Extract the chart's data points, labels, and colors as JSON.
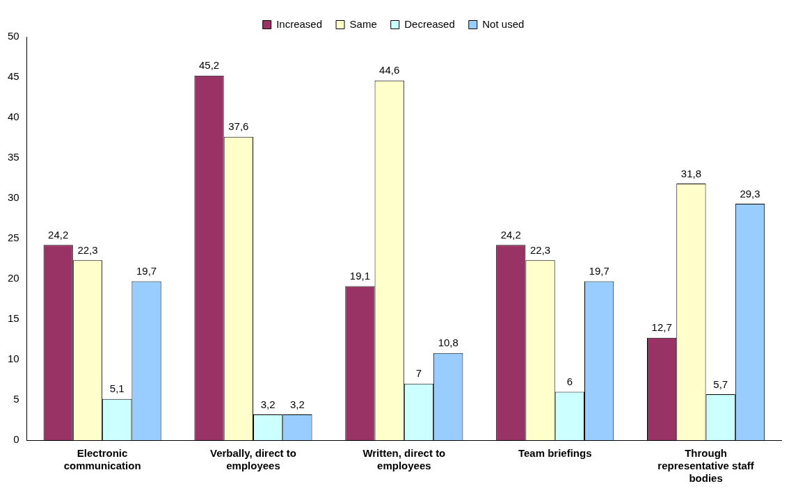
{
  "chart_data": {
    "type": "bar",
    "categories": [
      "Electronic communication",
      "Verbally, direct to employees",
      "Written, direct to employees",
      "Team briefings",
      "Through representative staff bodies"
    ],
    "series": [
      {
        "name": "Increased",
        "color": "#993366",
        "values": [
          24.2,
          45.2,
          19.1,
          24.2,
          12.7
        ],
        "value_labels": [
          "24,2",
          "45,2",
          "19,1",
          "24,2",
          "12,7"
        ]
      },
      {
        "name": "Same",
        "color": "#ffffcc",
        "values": [
          22.3,
          37.6,
          44.6,
          22.3,
          31.8
        ],
        "value_labels": [
          "22,3",
          "37,6",
          "44,6",
          "22,3",
          "31,8"
        ]
      },
      {
        "name": "Decreased",
        "color": "#ccffff",
        "values": [
          5.1,
          3.2,
          7,
          6,
          5.7
        ],
        "value_labels": [
          "5,1",
          "3,2",
          "7",
          "6",
          "5,7"
        ]
      },
      {
        "name": "Not used",
        "color": "#99ccff",
        "values": [
          19.7,
          3.2,
          10.8,
          19.7,
          29.3
        ],
        "value_labels": [
          "19,7",
          "3,2",
          "10,8",
          "19,7",
          "29,3"
        ]
      }
    ],
    "ylim": [
      0,
      50
    ],
    "yticks": [
      0,
      5,
      10,
      15,
      20,
      25,
      30,
      35,
      40,
      45,
      50
    ],
    "grid": false,
    "legend": "top"
  }
}
